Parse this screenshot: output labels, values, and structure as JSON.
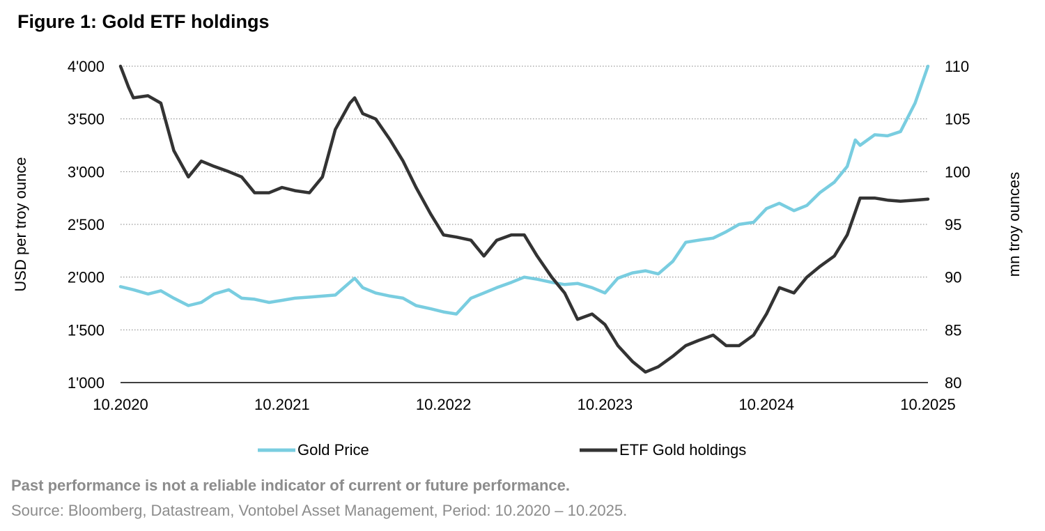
{
  "chart_data": {
    "type": "line",
    "title": "Figure 1: Gold ETF holdings",
    "ylabel_left": "USD per troy ounce",
    "ylabel_right": "mn troy ounces",
    "xlim": [
      2020.75,
      2025.75
    ],
    "x_ticks": [
      {
        "value": 2020.75,
        "label": "10.2020"
      },
      {
        "value": 2021.75,
        "label": "10.2021"
      },
      {
        "value": 2022.75,
        "label": "10.2022"
      },
      {
        "value": 2023.75,
        "label": "10.2023"
      },
      {
        "value": 2024.75,
        "label": "10.2024"
      },
      {
        "value": 2025.75,
        "label": "10.2025"
      }
    ],
    "ylim_left": [
      1000,
      4000
    ],
    "y_ticks_left": [
      {
        "value": 1000,
        "label": "1'000"
      },
      {
        "value": 1500,
        "label": "1'500"
      },
      {
        "value": 2000,
        "label": "2'000"
      },
      {
        "value": 2500,
        "label": "2'500"
      },
      {
        "value": 3000,
        "label": "3'000"
      },
      {
        "value": 3500,
        "label": "3'500"
      },
      {
        "value": 4000,
        "label": "4'000"
      }
    ],
    "ylim_right": [
      80,
      110
    ],
    "y_ticks_right": [
      {
        "value": 80,
        "label": "80"
      },
      {
        "value": 85,
        "label": "85"
      },
      {
        "value": 90,
        "label": "90"
      },
      {
        "value": 95,
        "label": "95"
      },
      {
        "value": 100,
        "label": "100"
      },
      {
        "value": 105,
        "label": "105"
      },
      {
        "value": 110,
        "label": "110"
      }
    ],
    "grid": "horizontal dotted",
    "legend_position": "bottom",
    "series": [
      {
        "name": "Gold Price",
        "axis": "left",
        "color": "#79cde0",
        "x": [
          2020.75,
          2020.83,
          2020.92,
          2021.0,
          2021.08,
          2021.17,
          2021.25,
          2021.33,
          2021.42,
          2021.5,
          2021.58,
          2021.67,
          2021.75,
          2021.83,
          2021.92,
          2022.0,
          2022.08,
          2022.17,
          2022.2,
          2022.25,
          2022.33,
          2022.42,
          2022.5,
          2022.58,
          2022.67,
          2022.75,
          2022.83,
          2022.92,
          2023.0,
          2023.08,
          2023.17,
          2023.25,
          2023.33,
          2023.42,
          2023.5,
          2023.58,
          2023.67,
          2023.75,
          2023.83,
          2023.92,
          2024.0,
          2024.08,
          2024.17,
          2024.25,
          2024.33,
          2024.42,
          2024.5,
          2024.58,
          2024.67,
          2024.75,
          2024.83,
          2024.92,
          2025.0,
          2025.08,
          2025.17,
          2025.25,
          2025.3,
          2025.33,
          2025.42,
          2025.5,
          2025.58,
          2025.67,
          2025.75
        ],
        "values": [
          1910,
          1880,
          1840,
          1870,
          1800,
          1730,
          1760,
          1840,
          1880,
          1800,
          1790,
          1760,
          1780,
          1800,
          1810,
          1820,
          1830,
          1950,
          1990,
          1900,
          1850,
          1820,
          1800,
          1730,
          1700,
          1670,
          1650,
          1800,
          1850,
          1900,
          1950,
          2000,
          1980,
          1950,
          1930,
          1940,
          1900,
          1850,
          1990,
          2040,
          2060,
          2030,
          2150,
          2330,
          2350,
          2370,
          2430,
          2500,
          2520,
          2650,
          2700,
          2630,
          2680,
          2800,
          2900,
          3050,
          3300,
          3250,
          3350,
          3340,
          3380,
          3650,
          4000
        ]
      },
      {
        "name": "ETF Gold holdings",
        "axis": "right",
        "color": "#333333",
        "x": [
          2020.75,
          2020.8,
          2020.83,
          2020.92,
          2021.0,
          2021.08,
          2021.17,
          2021.25,
          2021.33,
          2021.42,
          2021.5,
          2021.58,
          2021.67,
          2021.75,
          2021.83,
          2021.92,
          2022.0,
          2022.08,
          2022.17,
          2022.2,
          2022.25,
          2022.33,
          2022.42,
          2022.5,
          2022.58,
          2022.67,
          2022.75,
          2022.83,
          2022.92,
          2023.0,
          2023.08,
          2023.17,
          2023.25,
          2023.33,
          2023.42,
          2023.5,
          2023.58,
          2023.67,
          2023.75,
          2023.83,
          2023.92,
          2024.0,
          2024.08,
          2024.17,
          2024.25,
          2024.33,
          2024.42,
          2024.5,
          2024.58,
          2024.67,
          2024.75,
          2024.83,
          2024.92,
          2025.0,
          2025.08,
          2025.17,
          2025.25,
          2025.33,
          2025.42,
          2025.5,
          2025.58,
          2025.67,
          2025.75
        ],
        "values": [
          110,
          108,
          107,
          107.2,
          106.5,
          102,
          99.5,
          101,
          100.5,
          100,
          99.5,
          98,
          98,
          98.5,
          98.2,
          98,
          99.5,
          104,
          106.5,
          107,
          105.5,
          105,
          103,
          101,
          98.5,
          96,
          94,
          93.8,
          93.5,
          92,
          93.5,
          94,
          94,
          92,
          90,
          88.5,
          86,
          86.5,
          85.5,
          83.5,
          82,
          81,
          81.5,
          82.5,
          83.5,
          84,
          84.5,
          83.5,
          83.5,
          84.5,
          86.5,
          89,
          88.5,
          90,
          91,
          92,
          94,
          97.5,
          97.5,
          97.3,
          97.2,
          97.3,
          97.4
        ]
      }
    ]
  },
  "legend": {
    "gold": "Gold Price",
    "etf": "ETF Gold holdings"
  },
  "footnote": {
    "disclaimer": "Past performance is not a reliable indicator of current or future performance.",
    "source": "Source: Bloomberg, Datastream, Vontobel Asset Management, Period: 10.2020 – 10.2025."
  }
}
